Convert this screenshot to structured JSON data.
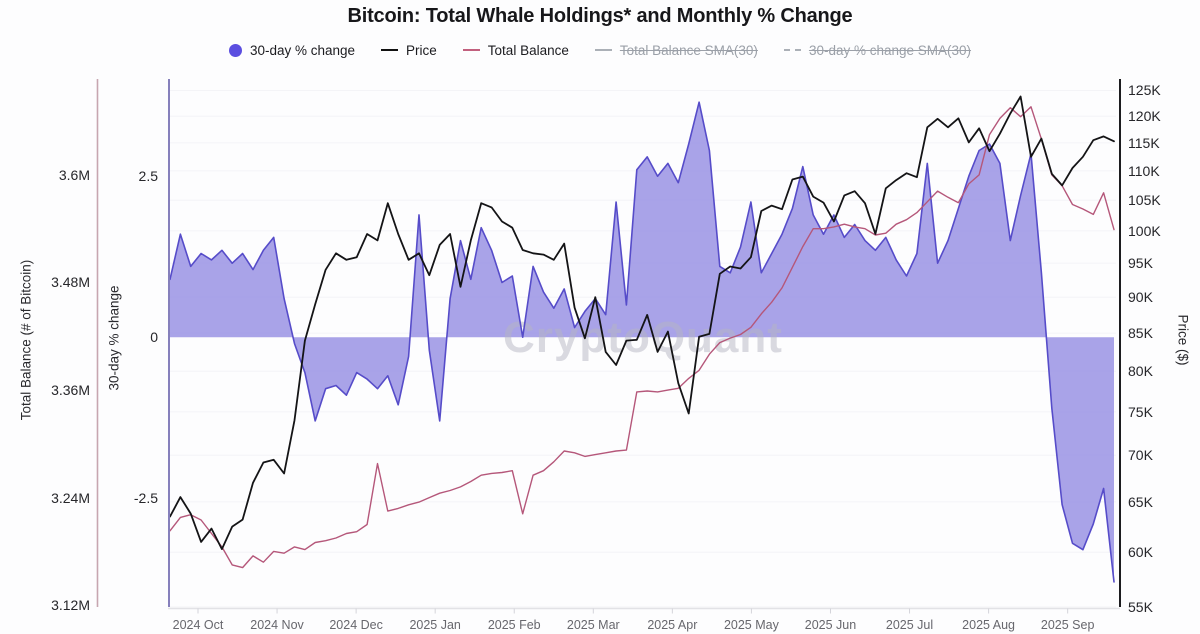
{
  "title": "Bitcoin: Total Whale Holdings* and Monthly % Change",
  "watermark": "CryptoQuant",
  "legend": {
    "items": [
      {
        "label": "30-day % change",
        "marker": "dot",
        "color": "#5B4EE0",
        "disabled": false
      },
      {
        "label": "Price",
        "marker": "line",
        "color": "#111111",
        "disabled": false
      },
      {
        "label": "Total Balance",
        "marker": "line",
        "color": "#C2607E",
        "disabled": false
      },
      {
        "label": "Total Balance SMA(30)",
        "marker": "line",
        "color": "#ABB0B7",
        "disabled": true
      },
      {
        "label": "30-day % change SMA(30)",
        "marker": "dashed-line",
        "color": "#ABB0B7",
        "disabled": true
      }
    ]
  },
  "axes": {
    "balance": {
      "title": "Total Balance (# of Bitcoin)",
      "tick_labels": [
        "3.6M",
        "3.48M",
        "3.36M",
        "3.24M",
        "3.12M"
      ],
      "tick_values": [
        3.6,
        3.48,
        3.36,
        3.24,
        3.12
      ]
    },
    "pct": {
      "title": "30-day % change",
      "tick_labels": [
        "2.5",
        "0",
        "-2.5"
      ],
      "tick_values": [
        2.5,
        0,
        -2.5
      ]
    },
    "price": {
      "title": "Price ($)",
      "tick_labels": [
        "125K",
        "120K",
        "115K",
        "110K",
        "105K",
        "100K",
        "95K",
        "90K",
        "85K",
        "80K",
        "75K",
        "70K",
        "65K",
        "60K",
        "55K"
      ],
      "tick_values": [
        125,
        120,
        115,
        110,
        105,
        100,
        95,
        90,
        85,
        80,
        75,
        70,
        65,
        60,
        55
      ]
    },
    "x": {
      "labels": [
        "2024 Oct",
        "2024 Nov",
        "2024 Dec",
        "2025 Jan",
        "2025 Feb",
        "2025 Mar",
        "2025 Apr",
        "2025 May",
        "2025 Jun",
        "2025 Jul",
        "2025 Aug",
        "2025 Sep"
      ]
    }
  },
  "colors": {
    "area_fill": "#968FE3",
    "area_stroke": "#564CC9",
    "price_line": "#141416",
    "balance_line": "#B5577A",
    "balance_axis_line": "#C7A6B0",
    "pct_axis_line": "#8680BC",
    "price_axis_line": "#1c1c1f",
    "bottom_axis_line": "#e2e2e6",
    "gridline": "#f4f4f7",
    "watermark_fill": "#b6b6c2"
  },
  "chart_data": {
    "type": "combo",
    "x_dates": [
      "2024-09-22",
      "2024-09-26",
      "2024-09-30",
      "2024-10-04",
      "2024-10-08",
      "2024-10-12",
      "2024-10-16",
      "2024-10-20",
      "2024-10-24",
      "2024-10-28",
      "2024-11-01",
      "2024-11-05",
      "2024-11-09",
      "2024-11-13",
      "2024-11-17",
      "2024-11-21",
      "2024-11-25",
      "2024-11-29",
      "2024-12-03",
      "2024-12-07",
      "2024-12-11",
      "2024-12-15",
      "2024-12-19",
      "2024-12-23",
      "2024-12-27",
      "2024-12-31",
      "2025-01-04",
      "2025-01-08",
      "2025-01-12",
      "2025-01-16",
      "2025-01-20",
      "2025-01-24",
      "2025-01-28",
      "2025-02-01",
      "2025-02-05",
      "2025-02-09",
      "2025-02-13",
      "2025-02-17",
      "2025-02-21",
      "2025-02-25",
      "2025-03-01",
      "2025-03-05",
      "2025-03-09",
      "2025-03-13",
      "2025-03-17",
      "2025-03-21",
      "2025-03-25",
      "2025-03-29",
      "2025-04-02",
      "2025-04-06",
      "2025-04-10",
      "2025-04-14",
      "2025-04-18",
      "2025-04-22",
      "2025-04-26",
      "2025-04-30",
      "2025-05-04",
      "2025-05-08",
      "2025-05-12",
      "2025-05-16",
      "2025-05-20",
      "2025-05-24",
      "2025-05-28",
      "2025-06-01",
      "2025-06-05",
      "2025-06-09",
      "2025-06-13",
      "2025-06-17",
      "2025-06-21",
      "2025-06-25",
      "2025-06-29",
      "2025-07-03",
      "2025-07-07",
      "2025-07-11",
      "2025-07-15",
      "2025-07-19",
      "2025-07-23",
      "2025-07-27",
      "2025-07-31",
      "2025-08-04",
      "2025-08-08",
      "2025-08-12",
      "2025-08-16",
      "2025-08-20",
      "2025-08-24",
      "2025-08-28",
      "2025-09-01",
      "2025-09-05",
      "2025-09-09",
      "2025-09-13",
      "2025-09-17",
      "2025-09-21"
    ],
    "series": [
      {
        "name": "30-day % change",
        "type": "area",
        "y_axis": "pct",
        "values": [
          0.9,
          1.6,
          1.1,
          1.3,
          1.2,
          1.35,
          1.15,
          1.3,
          1.05,
          1.35,
          1.55,
          0.6,
          -0.1,
          -0.55,
          -1.3,
          -0.8,
          -0.75,
          -0.9,
          -0.55,
          -0.65,
          -0.8,
          -0.6,
          -1.05,
          -0.3,
          1.9,
          -0.2,
          -1.3,
          0.6,
          1.5,
          0.9,
          1.7,
          1.35,
          0.85,
          0.95,
          0.0,
          1.1,
          0.7,
          0.45,
          0.75,
          0.15,
          0.4,
          0.6,
          0.35,
          2.1,
          0.5,
          2.6,
          2.8,
          2.5,
          2.7,
          2.4,
          3.0,
          3.65,
          2.9,
          1.1,
          1.0,
          1.4,
          2.1,
          1.0,
          1.3,
          1.6,
          2.0,
          2.65,
          1.9,
          1.6,
          1.9,
          1.55,
          1.75,
          1.5,
          1.35,
          1.55,
          1.2,
          0.95,
          1.3,
          2.7,
          1.15,
          1.5,
          2.0,
          2.5,
          2.9,
          3.0,
          2.7,
          1.5,
          2.2,
          2.85,
          1.0,
          -1.1,
          -2.6,
          -3.2,
          -3.3,
          -2.9,
          -2.35,
          -3.8
        ]
      },
      {
        "name": "Price",
        "type": "line",
        "y_axis": "price_kusd",
        "values": [
          63.5,
          65.5,
          63.8,
          61.0,
          62.3,
          60.3,
          62.5,
          63.2,
          67.0,
          69.2,
          69.5,
          68.0,
          74.0,
          84.0,
          89.0,
          94.0,
          96.5,
          95.5,
          95.9,
          99.5,
          98.5,
          104.5,
          99.5,
          95.5,
          96.5,
          93.2,
          97.8,
          99.5,
          91.5,
          98.5,
          104.5,
          103.8,
          101.5,
          100.5,
          97.0,
          96.5,
          96.3,
          95.5,
          98.0,
          88.5,
          84.3,
          90.0,
          82.5,
          80.8,
          84.0,
          84.1,
          87.5,
          82.5,
          85.2,
          78.5,
          74.8,
          84.5,
          84.9,
          93.4,
          94.5,
          94.2,
          95.9,
          103.2,
          104.1,
          103.5,
          108.5,
          109.0,
          105.6,
          104.6,
          101.5,
          105.8,
          106.5,
          104.5,
          99.5,
          107.0,
          108.4,
          109.6,
          108.9,
          117.9,
          119.5,
          117.9,
          119.6,
          115.1,
          117.7,
          113.5,
          116.7,
          120.5,
          123.8,
          112.5,
          115.8,
          109.5,
          107.5,
          110.5,
          112.5,
          115.5,
          116.2,
          115.3
        ]
      },
      {
        "name": "Total Balance",
        "type": "line",
        "y_axis": "balance_mbtc",
        "values": [
          3.203,
          3.218,
          3.221,
          3.215,
          3.2,
          3.185,
          3.165,
          3.162,
          3.175,
          3.168,
          3.18,
          3.178,
          3.185,
          3.182,
          3.19,
          3.192,
          3.195,
          3.2,
          3.202,
          3.21,
          3.278,
          3.225,
          3.228,
          3.232,
          3.235,
          3.24,
          3.245,
          3.248,
          3.252,
          3.258,
          3.265,
          3.267,
          3.268,
          3.27,
          3.222,
          3.265,
          3.27,
          3.28,
          3.292,
          3.29,
          3.286,
          3.288,
          3.29,
          3.292,
          3.293,
          3.358,
          3.359,
          3.358,
          3.36,
          3.362,
          3.373,
          3.382,
          3.4,
          3.413,
          3.418,
          3.422,
          3.43,
          3.445,
          3.458,
          3.474,
          3.497,
          3.52,
          3.54,
          3.54,
          3.542,
          3.545,
          3.542,
          3.54,
          3.533,
          3.535,
          3.545,
          3.55,
          3.558,
          3.57,
          3.582,
          3.575,
          3.569,
          3.59,
          3.6,
          3.645,
          3.663,
          3.675,
          3.665,
          3.676,
          3.64,
          3.6,
          3.588,
          3.567,
          3.562,
          3.556,
          3.58,
          3.539
        ]
      }
    ],
    "disabled_series": [
      "Total Balance SMA(30)",
      "30-day % change SMA(30)"
    ],
    "y_axes": {
      "pct": {
        "label": "30-day % change",
        "scale": "linear",
        "range": [
          -4.19,
          4.01
        ],
        "ticks": [
          2.5,
          0,
          -2.5
        ],
        "position": "left-inner"
      },
      "balance_mbtc": {
        "label": "Total Balance (# of Bitcoin)",
        "scale": "linear",
        "range": [
          3.118,
          3.707
        ],
        "ticks": [
          3.6,
          3.48,
          3.36,
          3.24,
          3.12
        ],
        "position": "left-outer"
      },
      "price_kusd": {
        "label": "Price ($)",
        "scale": "log",
        "range": [
          55,
          127.3
        ],
        "ticks": [
          125,
          120,
          115,
          110,
          105,
          100,
          95,
          90,
          85,
          80,
          75,
          70,
          65,
          60,
          55
        ],
        "position": "right"
      }
    },
    "x_axis_labels": [
      "2024 Oct",
      "2024 Nov",
      "2024 Dec",
      "2025 Jan",
      "2025 Feb",
      "2025 Mar",
      "2025 Apr",
      "2025 May",
      "2025 Jun",
      "2025 Jul",
      "2025 Aug",
      "2025 Sep"
    ]
  }
}
